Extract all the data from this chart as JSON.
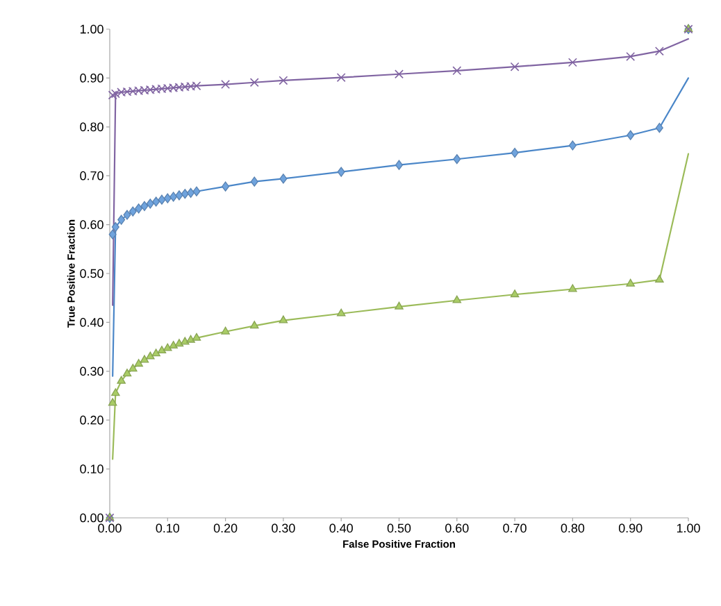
{
  "chart_data": {
    "type": "line",
    "xlabel": "False Positive Fraction",
    "ylabel": "True Positive Fraction",
    "xlim": [
      0,
      1
    ],
    "ylim": [
      0,
      1
    ],
    "xticks": [
      {
        "value": 0,
        "label": "0.00"
      },
      {
        "value": 0.1,
        "label": "0.10"
      },
      {
        "value": 0.2,
        "label": "0.20"
      },
      {
        "value": 0.3,
        "label": "0.30"
      },
      {
        "value": 0.4,
        "label": "0.40"
      },
      {
        "value": 0.5,
        "label": "0.50"
      },
      {
        "value": 0.6,
        "label": "0.60"
      },
      {
        "value": 0.7,
        "label": "0.70"
      },
      {
        "value": 0.8,
        "label": "0.80"
      },
      {
        "value": 0.9,
        "label": "0.90"
      },
      {
        "value": 1,
        "label": "1.00"
      }
    ],
    "yticks": [
      {
        "value": 0,
        "label": "0.00"
      },
      {
        "value": 0.1,
        "label": "0.10"
      },
      {
        "value": 0.2,
        "label": "0.20"
      },
      {
        "value": 0.3,
        "label": "0.30"
      },
      {
        "value": 0.4,
        "label": "0.40"
      },
      {
        "value": 0.5,
        "label": "0.50"
      },
      {
        "value": 0.6,
        "label": "0.60"
      },
      {
        "value": 0.7,
        "label": "0.70"
      },
      {
        "value": 0.8,
        "label": "0.80"
      },
      {
        "value": 0.9,
        "label": "0.90"
      },
      {
        "value": 1,
        "label": "1.00"
      }
    ],
    "grid": false,
    "line_style": "solid",
    "series": [
      {
        "marker": "none",
        "color": "#4a86c8",
        "x": [
          0.005,
          0.01,
          0.02,
          0.03,
          0.04,
          0.05,
          0.06,
          0.07,
          0.08,
          0.09,
          0.1,
          0.11,
          0.12,
          0.13,
          0.14,
          0.15,
          0.2,
          0.25,
          0.3,
          0.4,
          0.5,
          0.6,
          0.7,
          0.8,
          0.9,
          0.95,
          1
        ],
        "values": [
          0.29,
          0.595,
          0.61,
          0.62,
          0.627,
          0.633,
          0.638,
          0.643,
          0.647,
          0.651,
          0.654,
          0.657,
          0.66,
          0.663,
          0.665,
          0.668,
          0.678,
          0.688,
          0.694,
          0.708,
          0.722,
          0.734,
          0.747,
          0.762,
          0.783,
          0.798,
          0.9
        ]
      },
      {
        "marker": "none",
        "color": "#9bbb59",
        "x": [
          0.005,
          0.01,
          0.02,
          0.03,
          0.04,
          0.05,
          0.06,
          0.07,
          0.08,
          0.09,
          0.1,
          0.11,
          0.12,
          0.13,
          0.14,
          0.15,
          0.2,
          0.25,
          0.3,
          0.4,
          0.5,
          0.6,
          0.7,
          0.8,
          0.9,
          0.95,
          1
        ],
        "values": [
          0.12,
          0.255,
          0.28,
          0.295,
          0.305,
          0.315,
          0.323,
          0.33,
          0.336,
          0.342,
          0.347,
          0.352,
          0.356,
          0.36,
          0.364,
          0.368,
          0.381,
          0.393,
          0.404,
          0.418,
          0.432,
          0.445,
          0.457,
          0.468,
          0.479,
          0.487,
          0.745
        ]
      },
      {
        "marker": "none",
        "color": "#8064a2",
        "x": [
          0.005,
          0.01,
          0.02,
          0.03,
          0.04,
          0.05,
          0.06,
          0.07,
          0.08,
          0.09,
          0.1,
          0.11,
          0.12,
          0.13,
          0.14,
          0.15,
          0.2,
          0.25,
          0.3,
          0.4,
          0.5,
          0.6,
          0.7,
          0.8,
          0.9,
          0.95,
          1
        ],
        "values": [
          0.435,
          0.868,
          0.871,
          0.872,
          0.873,
          0.874,
          0.875,
          0.876,
          0.877,
          0.878,
          0.879,
          0.88,
          0.881,
          0.882,
          0.883,
          0.884,
          0.887,
          0.891,
          0.895,
          0.901,
          0.908,
          0.915,
          0.923,
          0.932,
          0.944,
          0.955,
          0.98
        ]
      },
      {
        "type": "scatter",
        "marker": "diamond",
        "color": "#6fa3dd",
        "x": [
          0,
          0.005,
          0.01,
          0.02,
          0.03,
          0.04,
          0.05,
          0.06,
          0.07,
          0.08,
          0.09,
          0.1,
          0.11,
          0.12,
          0.13,
          0.14,
          0.15,
          0.2,
          0.25,
          0.3,
          0.4,
          0.5,
          0.6,
          0.7,
          0.8,
          0.9,
          0.95,
          1
        ],
        "values": [
          0,
          0.58,
          0.595,
          0.61,
          0.62,
          0.627,
          0.633,
          0.638,
          0.643,
          0.647,
          0.651,
          0.654,
          0.657,
          0.66,
          0.663,
          0.665,
          0.668,
          0.678,
          0.688,
          0.694,
          0.708,
          0.722,
          0.734,
          0.747,
          0.762,
          0.783,
          0.798,
          1
        ]
      },
      {
        "type": "scatter",
        "marker": "triangle",
        "color": "#a9cc66",
        "x": [
          0,
          0.005,
          0.01,
          0.02,
          0.03,
          0.04,
          0.05,
          0.06,
          0.07,
          0.08,
          0.09,
          0.1,
          0.11,
          0.12,
          0.13,
          0.14,
          0.15,
          0.2,
          0.25,
          0.3,
          0.4,
          0.5,
          0.6,
          0.7,
          0.8,
          0.9,
          0.95,
          1
        ],
        "values": [
          0,
          0.235,
          0.255,
          0.28,
          0.295,
          0.305,
          0.315,
          0.323,
          0.33,
          0.336,
          0.342,
          0.347,
          0.352,
          0.356,
          0.36,
          0.364,
          0.368,
          0.381,
          0.393,
          0.404,
          0.418,
          0.432,
          0.445,
          0.457,
          0.468,
          0.479,
          0.487,
          1
        ]
      },
      {
        "type": "scatter",
        "marker": "cross",
        "color": "#8064a2",
        "x": [
          0,
          0.005,
          0.01,
          0.02,
          0.03,
          0.04,
          0.05,
          0.06,
          0.07,
          0.08,
          0.09,
          0.1,
          0.11,
          0.12,
          0.13,
          0.14,
          0.15,
          0.2,
          0.25,
          0.3,
          0.4,
          0.5,
          0.6,
          0.7,
          0.8,
          0.9,
          0.95,
          1
        ],
        "values": [
          0,
          0.865,
          0.868,
          0.871,
          0.872,
          0.873,
          0.874,
          0.875,
          0.876,
          0.877,
          0.878,
          0.879,
          0.88,
          0.881,
          0.882,
          0.883,
          0.884,
          0.887,
          0.891,
          0.895,
          0.901,
          0.908,
          0.915,
          0.923,
          0.932,
          0.944,
          0.955,
          1
        ]
      }
    ]
  }
}
